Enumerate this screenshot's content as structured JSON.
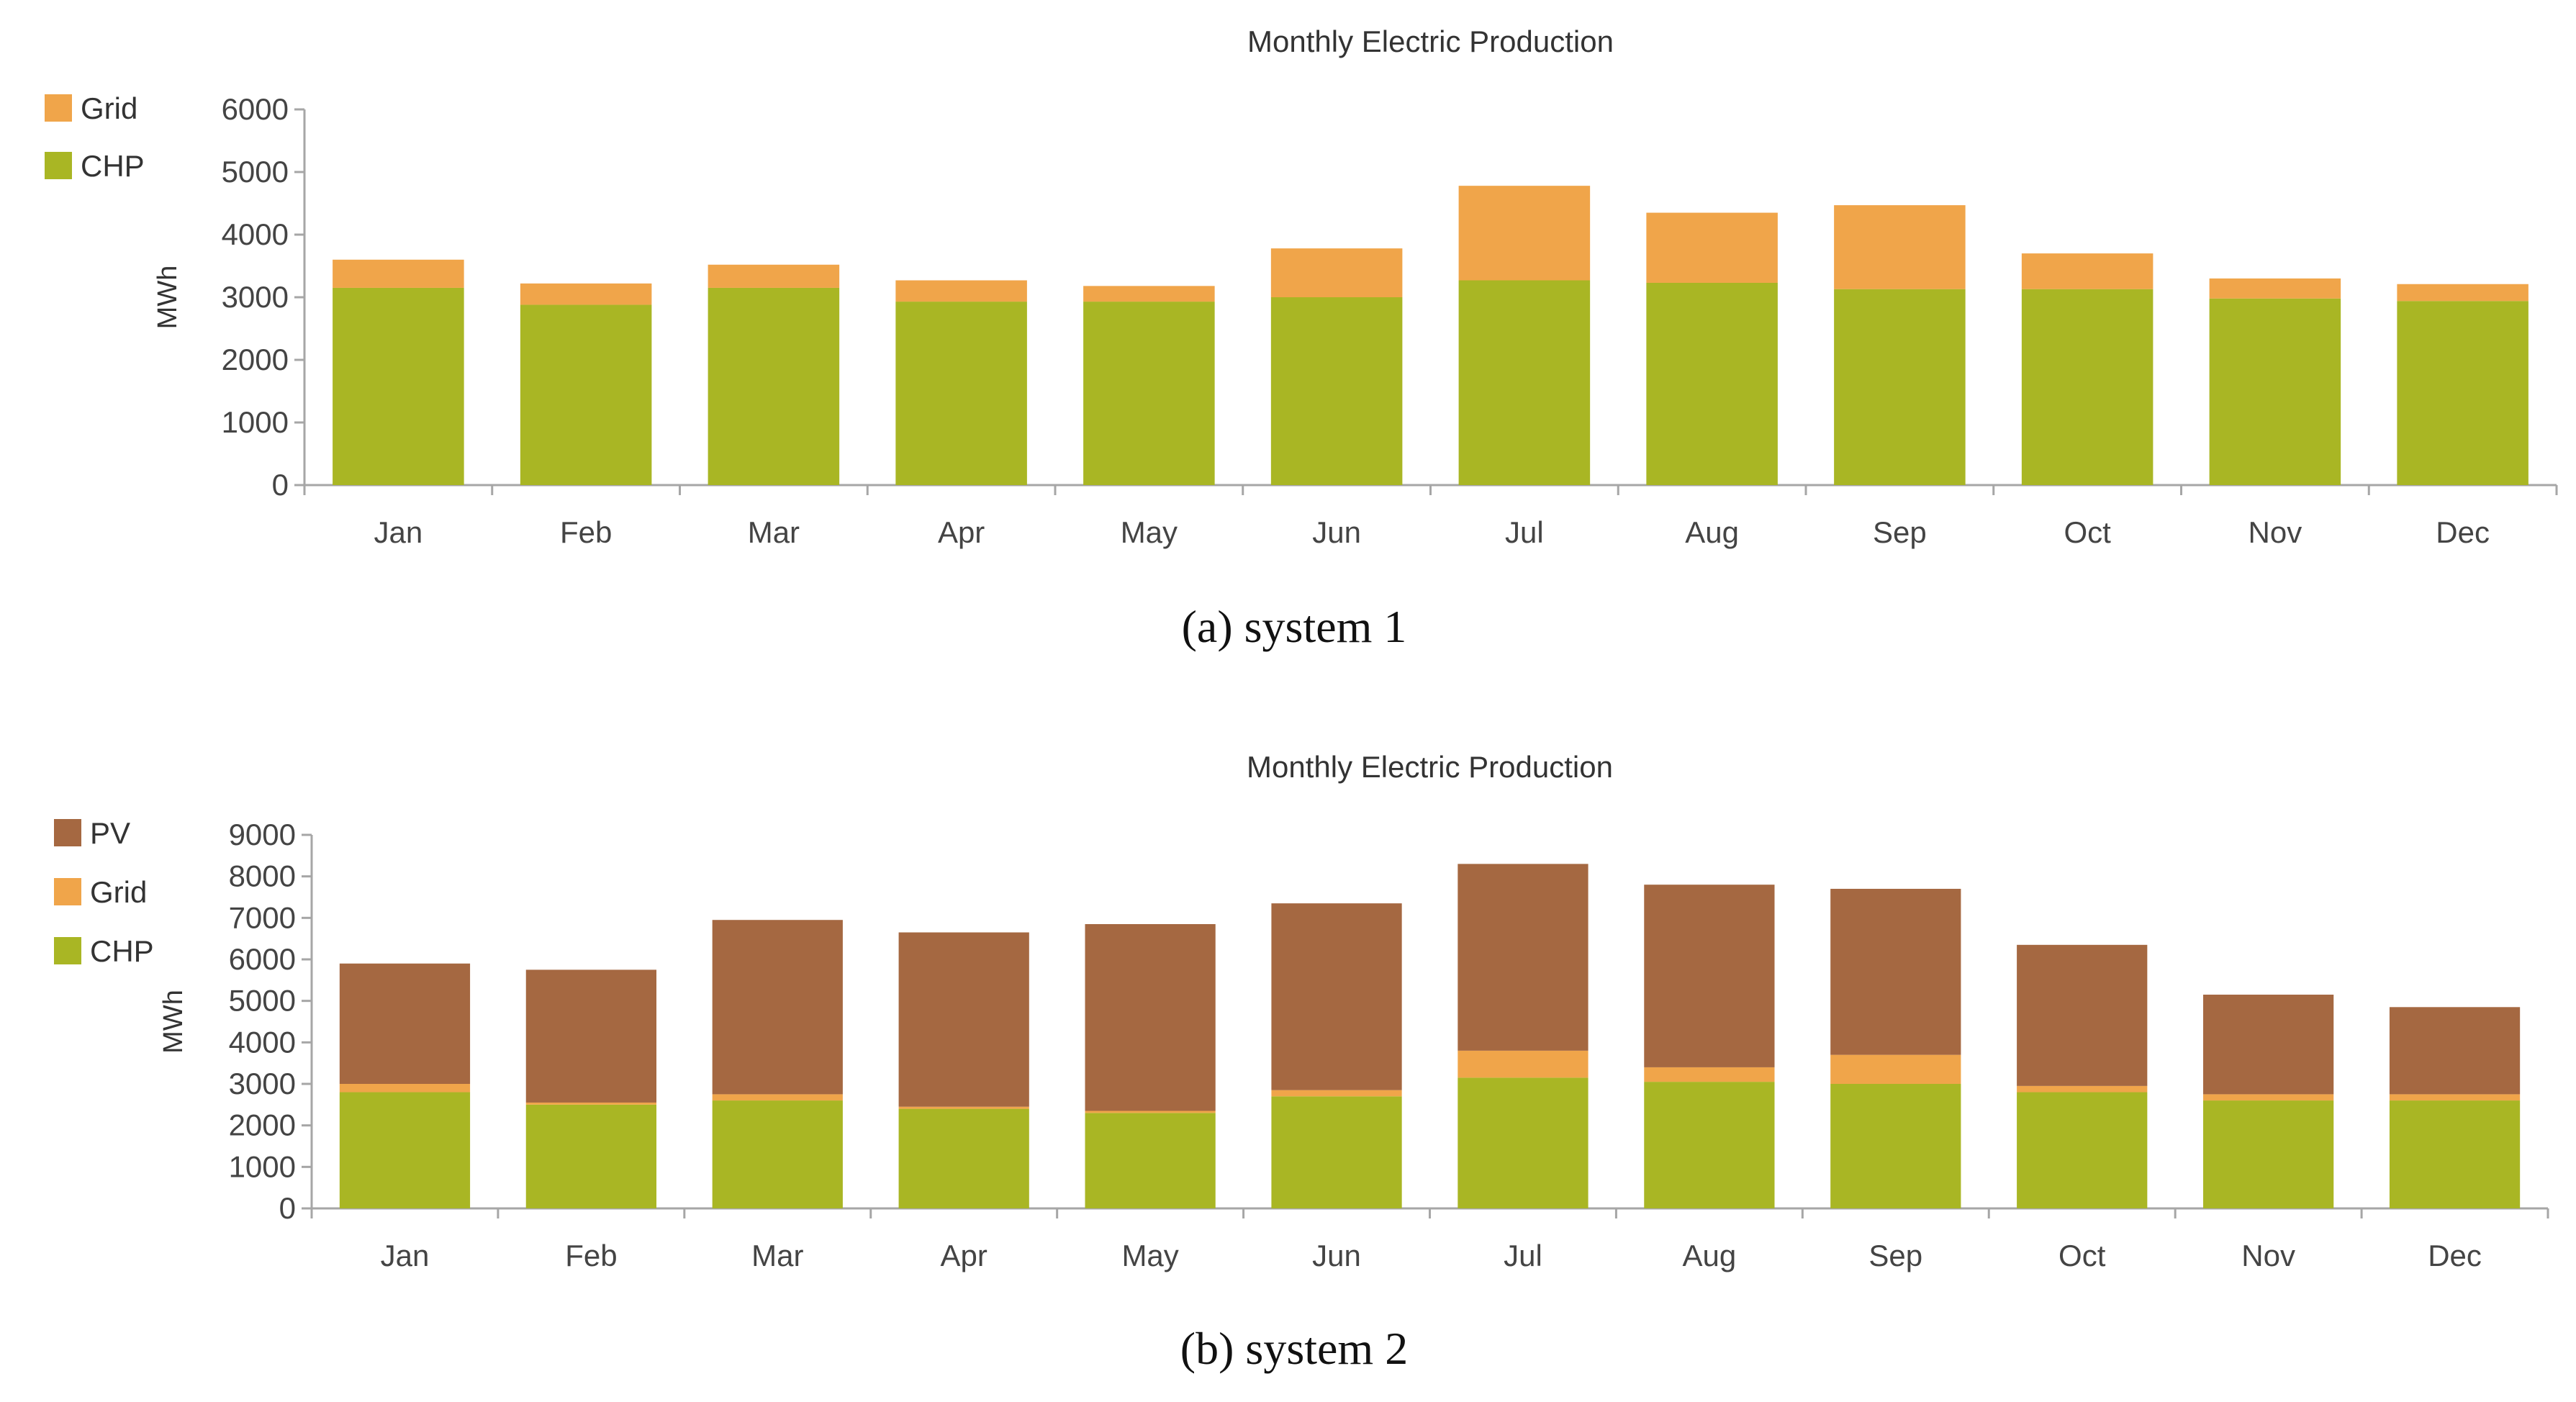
{
  "chart_data": [
    {
      "type": "bar",
      "stacked": true,
      "title": "Monthly Electric Production",
      "caption": "(a) system 1",
      "ylabel": "MWh",
      "xlabel": "",
      "ylim": [
        0,
        6000
      ],
      "yticks": [
        0,
        1000,
        2000,
        3000,
        4000,
        5000,
        6000
      ],
      "categories": [
        "Jan",
        "Feb",
        "Mar",
        "Apr",
        "May",
        "Jun",
        "Jul",
        "Aug",
        "Sep",
        "Oct",
        "Nov",
        "Dec"
      ],
      "legend_position": "top-left",
      "series": [
        {
          "name": "CHP",
          "color": "#a9b624",
          "values": [
            3150,
            2880,
            3150,
            2930,
            2930,
            3000,
            3270,
            3230,
            3130,
            3130,
            2980,
            2940
          ]
        },
        {
          "name": "Grid",
          "color": "#f0a54a",
          "values": [
            450,
            340,
            370,
            340,
            250,
            780,
            1510,
            1120,
            1340,
            570,
            320,
            270
          ]
        }
      ],
      "legend": [
        {
          "name": "Grid",
          "color": "#f0a54a"
        },
        {
          "name": "CHP",
          "color": "#a9b624"
        }
      ]
    },
    {
      "type": "bar",
      "stacked": true,
      "title": "Monthly Electric Production",
      "caption": "(b) system 2",
      "ylabel": "MWh",
      "xlabel": "",
      "ylim": [
        0,
        9000
      ],
      "yticks": [
        0,
        1000,
        2000,
        3000,
        4000,
        5000,
        6000,
        7000,
        8000,
        9000
      ],
      "categories": [
        "Jan",
        "Feb",
        "Mar",
        "Apr",
        "May",
        "Jun",
        "Jul",
        "Aug",
        "Sep",
        "Oct",
        "Nov",
        "Dec"
      ],
      "legend_position": "top-left",
      "series": [
        {
          "name": "CHP",
          "color": "#a9b624",
          "values": [
            2800,
            2500,
            2600,
            2400,
            2300,
            2700,
            3150,
            3050,
            3000,
            2800,
            2600,
            2600
          ]
        },
        {
          "name": "Grid",
          "color": "#f0a54a",
          "values": [
            200,
            50,
            150,
            50,
            50,
            150,
            650,
            350,
            700,
            150,
            150,
            150
          ]
        },
        {
          "name": "PV",
          "color": "#a56841",
          "values": [
            2900,
            3200,
            4200,
            4200,
            4500,
            4500,
            4500,
            4400,
            4000,
            3400,
            2400,
            2100
          ]
        }
      ],
      "legend": [
        {
          "name": "PV",
          "color": "#a56841"
        },
        {
          "name": "Grid",
          "color": "#f0a54a"
        },
        {
          "name": "CHP",
          "color": "#a9b624"
        }
      ]
    }
  ]
}
